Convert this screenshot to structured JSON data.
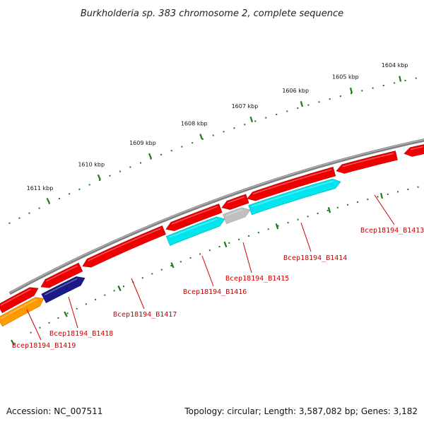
{
  "title": "Burkholderia sp. 383 chromosome 2, complete sequence",
  "footer": {
    "accession": "Accession: NC_007511",
    "summary": "Topology: circular; Length: 3,587,082 bp; Genes: 3,182"
  },
  "colors": {
    "backbone": "#808080",
    "tick": "#1a7a1a",
    "label": "#cc0000",
    "leader": "#cc0000",
    "forward_gene": "#ee0000",
    "cyan": "#00e5ee",
    "gray": "#c0c0c0",
    "orange": "#ff9900",
    "navy": "#1a1a88"
  },
  "scale_labels": [
    "1611 kbp",
    "1610 kbp",
    "1609 kbp",
    "1608 kbp",
    "1607 kbp",
    "1606 kbp",
    "1605 kbp",
    "1604 kbp"
  ],
  "gene_labels": [
    "Bcep18194_B1413",
    "Bcep18194_B1414",
    "Bcep18194_B1415",
    "Bcep18194_B1416",
    "Bcep18194_B1417",
    "Bcep18194_B1418",
    "Bcep18194_B1419"
  ]
}
